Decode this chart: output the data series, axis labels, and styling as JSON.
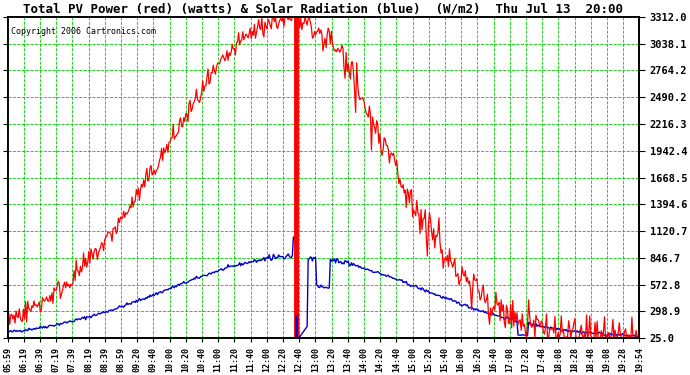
{
  "title": "Total PV Power (red) (watts) & Solar Radiation (blue)  (W/m2)  Thu Jul 13  20:00",
  "copyright": "Copyright 2006 Cartronics.com",
  "background_color": "#ffffff",
  "plot_bg_color": "#ffffff",
  "grid_color": "#00cc00",
  "red_color": "#ff0000",
  "blue_color": "#0000cc",
  "title_color": "#000000",
  "y_ticks": [
    25.0,
    298.9,
    572.8,
    846.7,
    1120.7,
    1394.6,
    1668.5,
    1942.4,
    2216.3,
    2490.2,
    2764.2,
    3038.1,
    3312.0
  ],
  "x_labels": [
    "05:59",
    "06:19",
    "06:39",
    "07:19",
    "07:39",
    "08:19",
    "08:39",
    "08:59",
    "09:20",
    "09:40",
    "10:00",
    "10:20",
    "10:40",
    "11:00",
    "11:20",
    "11:40",
    "12:00",
    "12:20",
    "12:40",
    "13:00",
    "13:20",
    "13:40",
    "14:00",
    "14:20",
    "14:40",
    "15:00",
    "15:20",
    "15:40",
    "16:00",
    "16:20",
    "16:40",
    "17:08",
    "17:28",
    "17:48",
    "18:08",
    "18:28",
    "18:48",
    "19:08",
    "19:28",
    "19:54"
  ],
  "ymin": 25.0,
  "ymax": 3312.0
}
